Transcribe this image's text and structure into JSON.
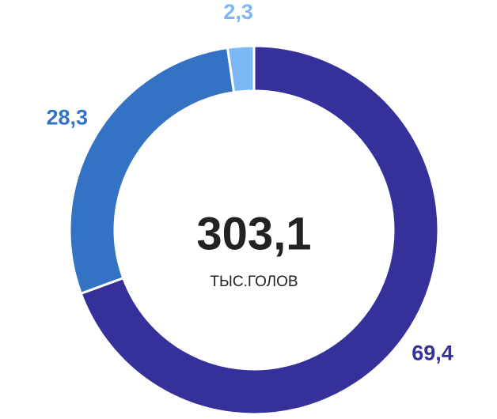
{
  "chart_data": {
    "type": "donut",
    "values": [
      69.4,
      28.3,
      2.3
    ],
    "value_labels": [
      "69,4",
      "28,3",
      "2,3"
    ],
    "colors": [
      "#36309a",
      "#3472c4",
      "#7cb8f5"
    ],
    "center_text": "303,1",
    "center_subtext": "ТЫС.ГОЛОВ"
  }
}
